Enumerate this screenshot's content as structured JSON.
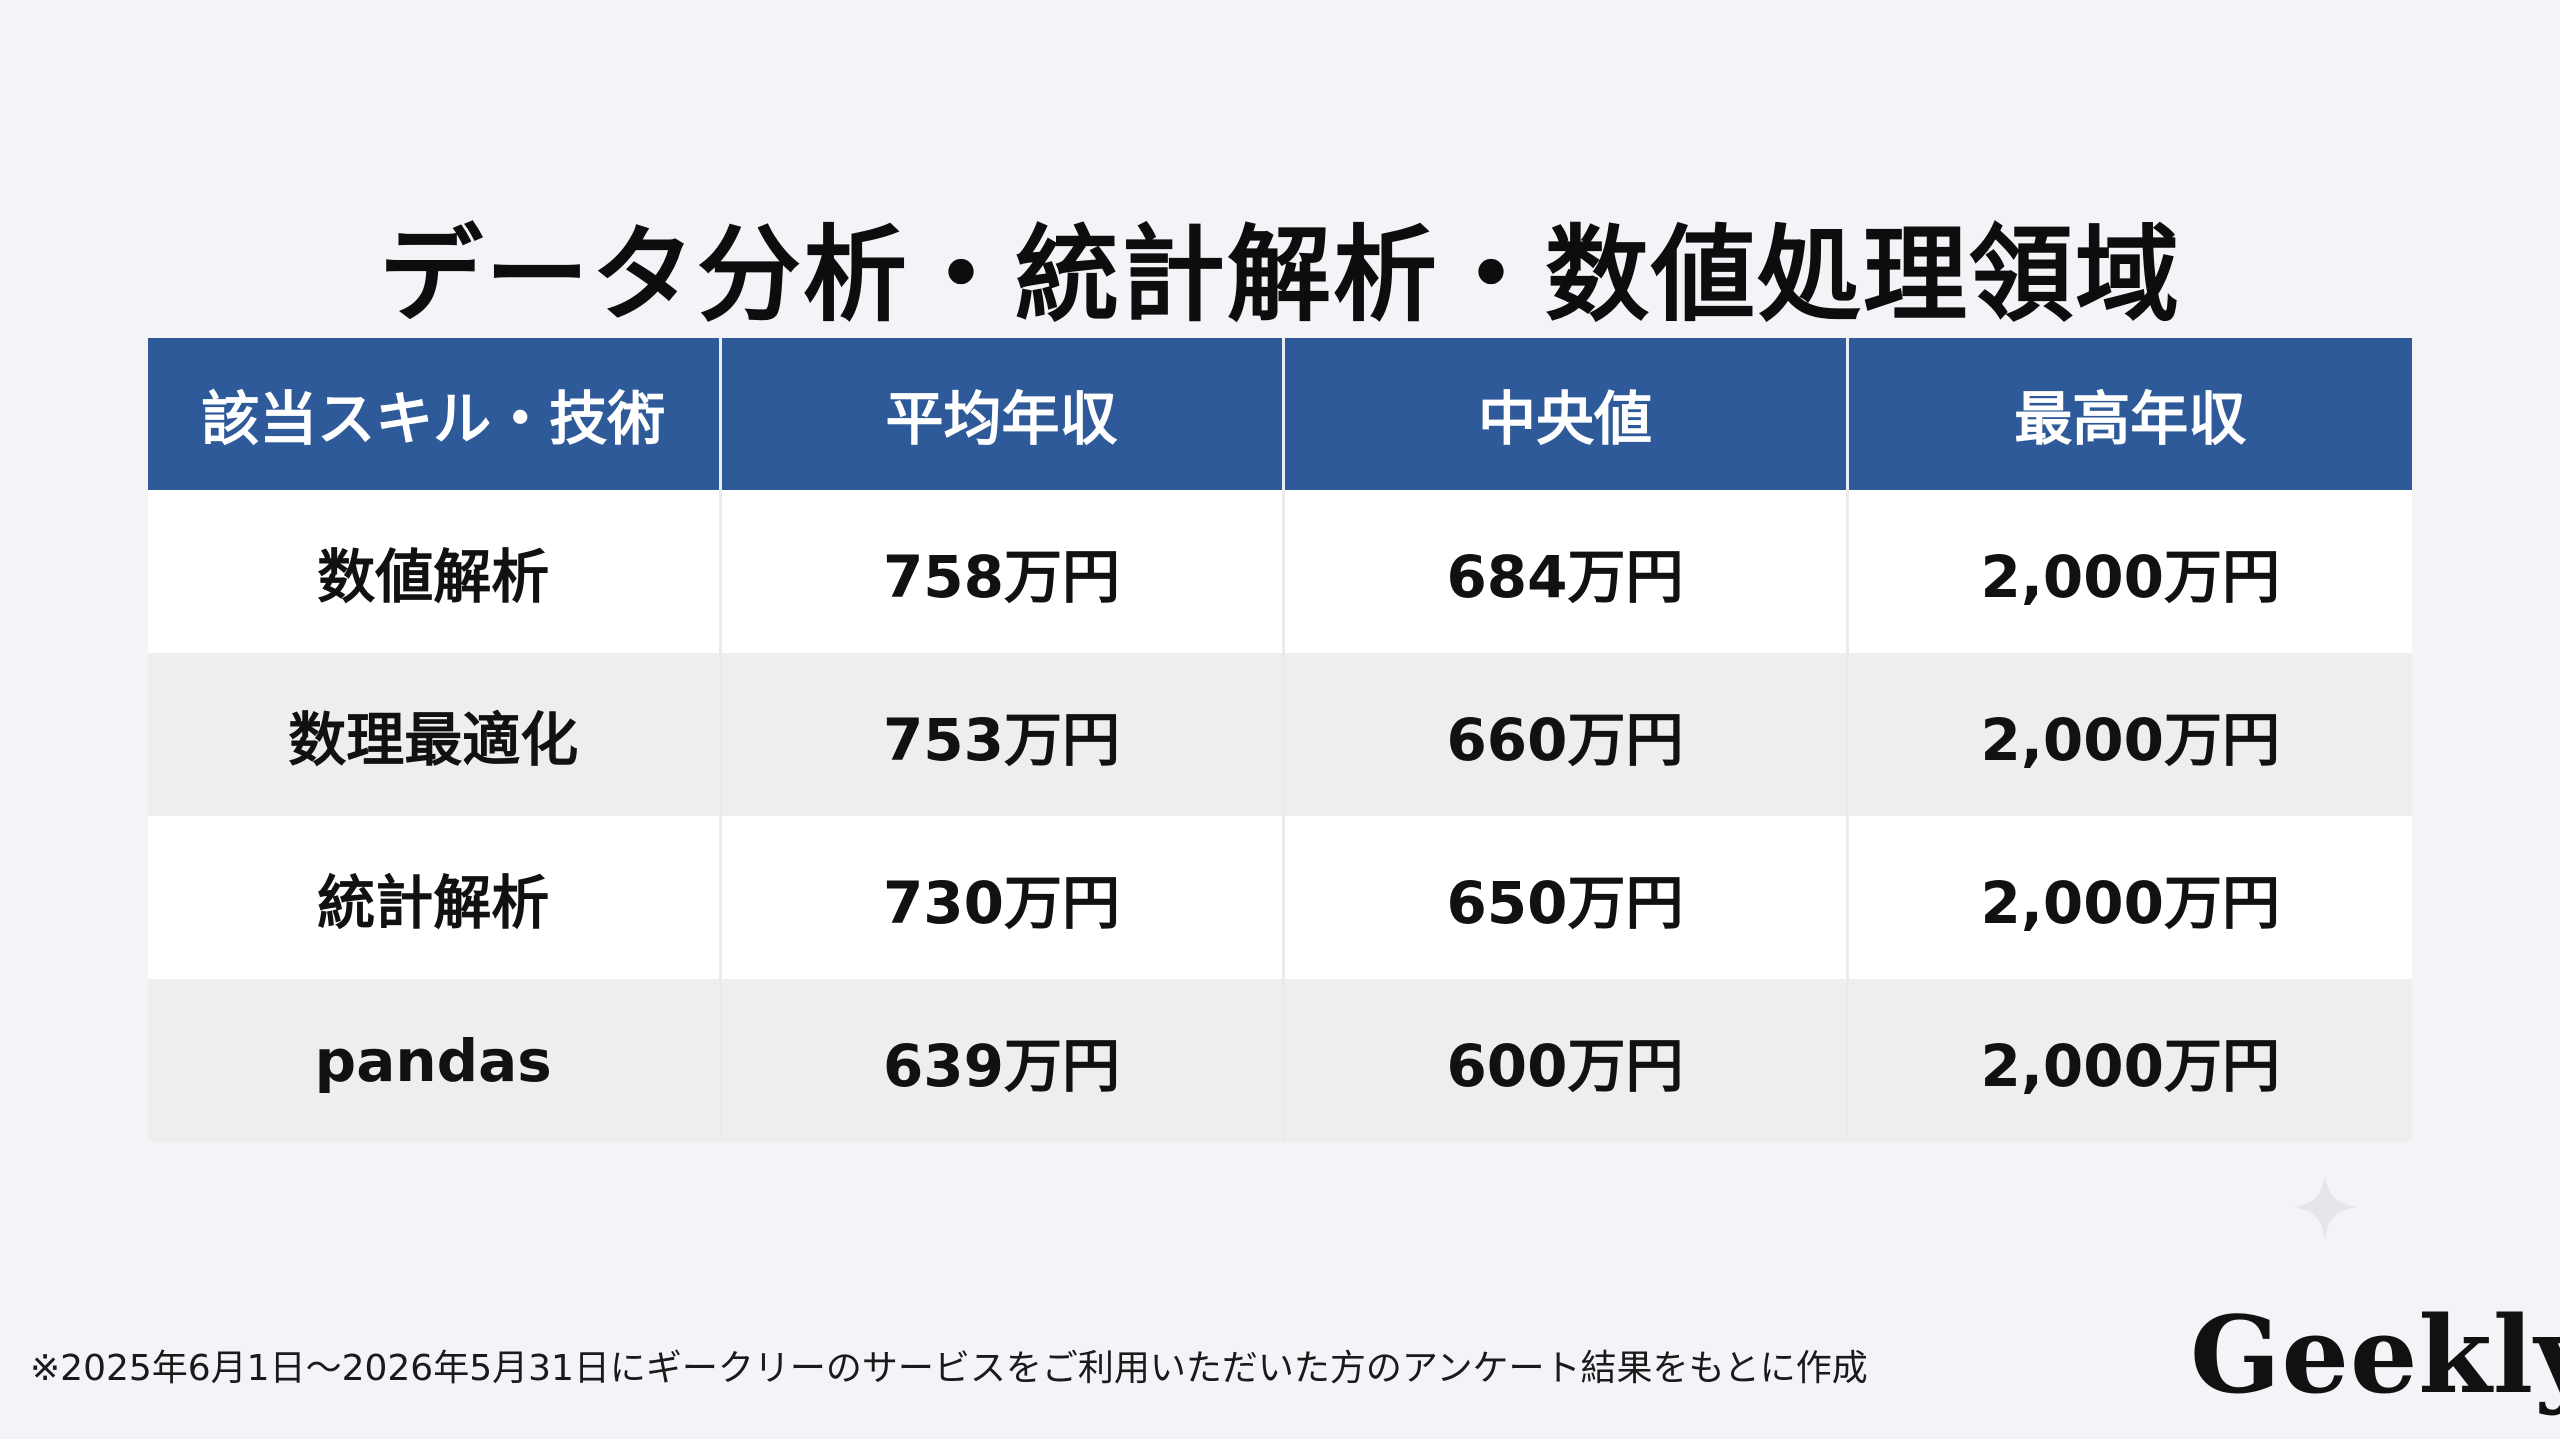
{
  "title": "データ分析・統計解析・数値処理領域",
  "table": {
    "headers": [
      "該当スキル・技術",
      "平均年収",
      "中央値",
      "最高年収"
    ],
    "rows": [
      [
        "数値解析",
        "758万円",
        "684万円",
        "2,000万円"
      ],
      [
        "数理最適化",
        "753万円",
        "660万円",
        "2,000万円"
      ],
      [
        "統計解析",
        "730万円",
        "650万円",
        "2,000万円"
      ],
      [
        "pandas",
        "639万円",
        "600万円",
        "2,000万円"
      ]
    ]
  },
  "footnote": "※2025年6月1日〜2026年5月31日にギークリーのサービスをご利用いただいた方のアンケート結果をもとに作成",
  "brand": {
    "logo_text": "Geekly"
  },
  "colors": {
    "header_bg": "#2f5a9a",
    "page_bg": "#f4f3f8",
    "row_alt_bg": "#efeeed"
  },
  "icons": [
    "sparkle-icon"
  ]
}
